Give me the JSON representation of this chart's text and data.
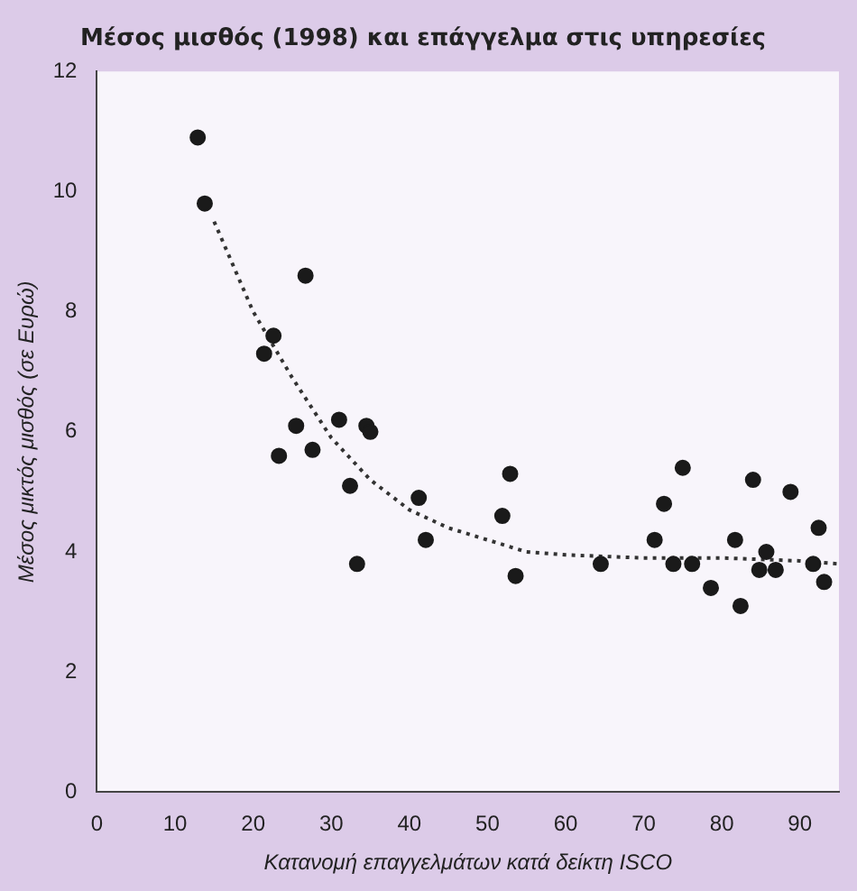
{
  "chart_data": {
    "type": "scatter",
    "title": "Μέσος μισθός (1998) και επάγγελμα στις υπηρεσίες",
    "xlabel": "Κατανομή επαγγελμάτων κατά δείκτη ISCO",
    "ylabel": "Μέσος μικτός μισθός (σε Ευρώ)",
    "xlim": [
      0,
      95
    ],
    "xticks": [
      0,
      10,
      20,
      30,
      40,
      50,
      60,
      70,
      80,
      90
    ],
    "ylim": [
      0,
      12
    ],
    "yticks": [
      0,
      2,
      4,
      6,
      8,
      10,
      12
    ],
    "grid": false,
    "legend": false,
    "marker": "circle",
    "series": [
      {
        "color": "#1a1a1a",
        "x": [
          12.9,
          13.8,
          26.7,
          22.6,
          21.4,
          25.5,
          34.5,
          23.3,
          27.6,
          32.4,
          41.2,
          42.1,
          33.3,
          31,
          35,
          52.9,
          51.9,
          53.6,
          64.5,
          75,
          72.6,
          71.4,
          73.8,
          76.2,
          78.6,
          82.4,
          81.7,
          84,
          88.8,
          92.4,
          84.8,
          86.9,
          91.7,
          93.1,
          85.7
        ],
        "values": [
          10.9,
          9.8,
          8.6,
          7.6,
          7.3,
          6.1,
          6.1,
          5.6,
          5.7,
          5.1,
          4.9,
          4.2,
          3.8,
          6.2,
          6.0,
          5.3,
          4.6,
          3.6,
          3.8,
          5.4,
          4.8,
          4.2,
          3.8,
          3.8,
          3.4,
          3.1,
          4.2,
          5.2,
          5.0,
          4.4,
          3.7,
          3.7,
          3.8,
          3.5,
          4.0
        ]
      },
      {
        "type": "line",
        "color": "#333333",
        "line_style": "dotted",
        "marker": "none",
        "x": [
          15,
          20,
          25,
          30,
          35,
          40,
          45,
          50,
          55,
          60,
          70,
          80,
          90,
          95
        ],
        "values": [
          9.5,
          8.0,
          6.9,
          5.9,
          5.2,
          4.7,
          4.4,
          4.2,
          4.0,
          3.95,
          3.9,
          3.9,
          3.85,
          3.8
        ]
      }
    ]
  }
}
